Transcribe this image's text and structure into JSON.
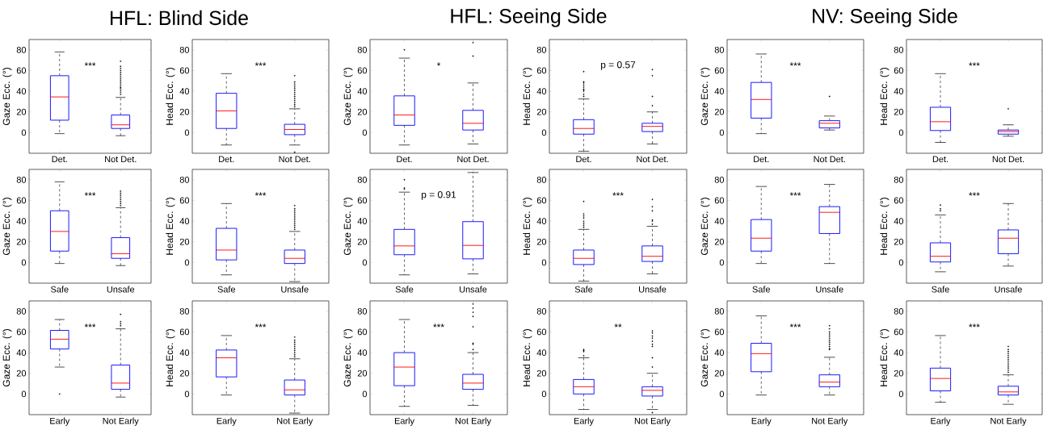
{
  "chart_data": [
    {
      "type": "box",
      "title": "HFL: Blind Side",
      "ylabel": "Gaze Ecc. (°)",
      "categories": [
        "Det.",
        "Not Det."
      ],
      "ylim": [
        -20,
        90
      ],
      "yticks": [
        0,
        20,
        40,
        60,
        80
      ],
      "annotations": [
        "***"
      ],
      "boxes": [
        {
          "low": -1,
          "q1": 12,
          "median": 34.5,
          "q3": 55,
          "high": 78
        },
        {
          "low": -3,
          "q1": 4,
          "median": 7.5,
          "q3": 17,
          "high": 34,
          "outliers": [
            37,
            39,
            41,
            43,
            44,
            46,
            48,
            50,
            52,
            54,
            56,
            58,
            60,
            62,
            64,
            69
          ]
        }
      ]
    },
    {
      "type": "box",
      "ylabel": "Head Ecc. (°)",
      "categories": [
        "Det.",
        "Not Det."
      ],
      "ylim": [
        -20,
        90
      ],
      "yticks": [
        0,
        20,
        40,
        60,
        80
      ],
      "annotations": [
        "***"
      ],
      "boxes": [
        {
          "low": -12,
          "q1": 4,
          "median": 21,
          "q3": 38,
          "high": 57
        },
        {
          "low": -12,
          "q1": -2,
          "median": 3,
          "q3": 8,
          "high": 23,
          "outliers": [
            -19,
            25,
            27,
            29,
            31,
            33,
            35,
            37,
            39,
            41,
            43,
            45,
            47,
            49,
            55
          ]
        }
      ]
    },
    {
      "type": "box",
      "title": "HFL: Seeing Side",
      "ylabel": "Gaze Ecc. (°)",
      "categories": [
        "Det.",
        "Not Det."
      ],
      "ylim": [
        -20,
        90
      ],
      "yticks": [
        0,
        20,
        40,
        60,
        80
      ],
      "annotations": [
        "*"
      ],
      "boxes": [
        {
          "low": -12,
          "q1": 7,
          "median": 17,
          "q3": 35.5,
          "high": 72,
          "outliers": [
            80
          ]
        },
        {
          "low": -11,
          "q1": 2.5,
          "median": 9,
          "q3": 21.5,
          "high": 48,
          "outliers": [
            74,
            87
          ]
        }
      ]
    },
    {
      "type": "box",
      "ylabel": "Head Ecc. (°)",
      "categories": [
        "Det.",
        "Not Det."
      ],
      "ylim": [
        -20,
        90
      ],
      "yticks": [
        0,
        20,
        40,
        60,
        80
      ],
      "annotations": [
        "p = 0.57"
      ],
      "boxes": [
        {
          "low": -18,
          "q1": -1.5,
          "median": 4,
          "q3": 12.5,
          "high": 32.5,
          "outliers": [
            35,
            37,
            40,
            41,
            42,
            44,
            46,
            48,
            49,
            59
          ]
        },
        {
          "low": -11,
          "q1": 1,
          "median": 6,
          "q3": 9,
          "high": 20,
          "outliers": [
            26,
            35,
            55,
            61
          ]
        }
      ]
    },
    {
      "type": "box",
      "title": "NV: Seeing Side",
      "ylabel": "Gaze Ecc. (°)",
      "categories": [
        "Det.",
        "Not Det."
      ],
      "ylim": [
        -20,
        90
      ],
      "yticks": [
        0,
        20,
        40,
        60,
        80
      ],
      "annotations": [
        "***"
      ],
      "boxes": [
        {
          "low": -1,
          "q1": 14,
          "median": 32,
          "q3": 48.5,
          "high": 76
        },
        {
          "low": 2.5,
          "q1": 4.5,
          "median": 9,
          "q3": 11.5,
          "high": 16,
          "outliers": [
            35
          ]
        }
      ]
    },
    {
      "type": "box",
      "ylabel": "Head Ecc. (°)",
      "categories": [
        "Det.",
        "Not Det."
      ],
      "ylim": [
        -20,
        90
      ],
      "yticks": [
        0,
        20,
        40,
        60,
        80
      ],
      "annotations": [
        "***"
      ],
      "boxes": [
        {
          "low": -9.5,
          "q1": 2,
          "median": 10.5,
          "q3": 24.5,
          "high": 57
        },
        {
          "low": -3.5,
          "q1": -1.5,
          "median": 1,
          "q3": 2.5,
          "high": 7.5,
          "outliers": [
            23
          ]
        }
      ]
    },
    {
      "type": "box",
      "ylabel": "Gaze Ecc. (°)",
      "categories": [
        "Safe",
        "Unsafe"
      ],
      "ylim": [
        -20,
        90
      ],
      "yticks": [
        0,
        20,
        40,
        60,
        80
      ],
      "annotations": [
        "***"
      ],
      "boxes": [
        {
          "low": -1,
          "q1": 11,
          "median": 30,
          "q3": 50,
          "high": 78
        },
        {
          "low": -3,
          "q1": 4,
          "median": 8.5,
          "q3": 24,
          "high": 53,
          "outliers": [
            55,
            57,
            59,
            61,
            63,
            65,
            67,
            69
          ]
        }
      ]
    },
    {
      "type": "box",
      "ylabel": "Head Ecc. (°)",
      "categories": [
        "Safe",
        "Unsafe"
      ],
      "ylim": [
        -20,
        90
      ],
      "yticks": [
        0,
        20,
        40,
        60,
        80
      ],
      "annotations": [
        "***"
      ],
      "boxes": [
        {
          "low": -12,
          "q1": 2.5,
          "median": 12,
          "q3": 33,
          "high": 57
        },
        {
          "low": -18.5,
          "q1": -1,
          "median": 4,
          "q3": 12,
          "high": 30,
          "outliers": [
            32,
            34,
            36,
            38,
            40,
            42,
            44,
            46,
            48,
            50,
            52,
            55
          ]
        }
      ]
    },
    {
      "type": "box",
      "ylabel": "Gaze Ecc. (°)",
      "categories": [
        "Safe",
        "Unsafe"
      ],
      "ylim": [
        -20,
        90
      ],
      "yticks": [
        0,
        20,
        40,
        60,
        80
      ],
      "annotations": [
        "p = 0.91"
      ],
      "boxes": [
        {
          "low": -12,
          "q1": 7.5,
          "median": 16,
          "q3": 32,
          "high": 68,
          "outliers": [
            71,
            72,
            80
          ]
        },
        {
          "low": -11,
          "q1": 3.5,
          "median": 16.5,
          "q3": 39.5,
          "high": 87
        }
      ]
    },
    {
      "type": "box",
      "ylabel": "Head Ecc. (°)",
      "categories": [
        "Safe",
        "Unsafe"
      ],
      "ylim": [
        -20,
        90
      ],
      "yticks": [
        0,
        20,
        40,
        60,
        80
      ],
      "annotations": [
        "***"
      ],
      "boxes": [
        {
          "low": -18,
          "q1": -2,
          "median": 4,
          "q3": 12,
          "high": 32,
          "outliers": [
            34,
            36,
            38,
            40,
            43,
            45,
            47,
            59
          ]
        },
        {
          "low": -11,
          "q1": 1,
          "median": 6,
          "q3": 16,
          "high": 35,
          "outliers": [
            37,
            40,
            41,
            50,
            54,
            61
          ]
        }
      ]
    },
    {
      "type": "box",
      "ylabel": "Gaze Ecc. (°)",
      "categories": [
        "Safe",
        "Unsafe"
      ],
      "ylim": [
        -20,
        90
      ],
      "yticks": [
        0,
        20,
        40,
        60,
        80
      ],
      "annotations": [
        "***"
      ],
      "boxes": [
        {
          "low": -1,
          "q1": 11,
          "median": 23.5,
          "q3": 41.5,
          "high": 73.5
        },
        {
          "low": -1,
          "q1": 28,
          "median": 48.5,
          "q3": 54,
          "high": 75.5
        }
      ]
    },
    {
      "type": "box",
      "ylabel": "Head Ecc. (°)",
      "categories": [
        "Safe",
        "Unsafe"
      ],
      "ylim": [
        -20,
        90
      ],
      "yticks": [
        0,
        20,
        40,
        60,
        80
      ],
      "annotations": [
        "***"
      ],
      "boxes": [
        {
          "low": -9,
          "q1": 0.5,
          "median": 6,
          "q3": 19,
          "high": 46,
          "outliers": [
            50,
            52,
            55.5
          ]
        },
        {
          "low": -3.5,
          "q1": 8.5,
          "median": 23.5,
          "q3": 31.5,
          "high": 57
        }
      ]
    },
    {
      "type": "box",
      "ylabel": "Gaze Ecc. (°)",
      "categories": [
        "Early",
        "Not Early"
      ],
      "ylim": [
        -20,
        90
      ],
      "yticks": [
        0,
        20,
        40,
        60,
        80
      ],
      "annotations": [
        "***"
      ],
      "boxes": [
        {
          "low": 26,
          "q1": 43.5,
          "median": 53,
          "q3": 61.5,
          "high": 72,
          "outliers": [
            0
          ]
        },
        {
          "low": -3,
          "q1": 4.5,
          "median": 10.5,
          "q3": 28,
          "high": 63,
          "outliers": [
            66,
            68,
            70,
            77
          ]
        }
      ]
    },
    {
      "type": "box",
      "ylabel": "Head Ecc. (°)",
      "categories": [
        "Early",
        "Not Early"
      ],
      "ylim": [
        -20,
        90
      ],
      "yticks": [
        0,
        20,
        40,
        60,
        80
      ],
      "annotations": [
        "***"
      ],
      "boxes": [
        {
          "low": -1,
          "q1": 16.5,
          "median": 35,
          "q3": 42.5,
          "high": 56.5
        },
        {
          "low": -18.5,
          "q1": -1,
          "median": 4,
          "q3": 13.5,
          "high": 34,
          "outliers": [
            36,
            38,
            40,
            42,
            44,
            46,
            48,
            50,
            52,
            55
          ]
        }
      ]
    },
    {
      "type": "box",
      "ylabel": "Gaze Ecc. (°)",
      "categories": [
        "Early",
        "Not Early"
      ],
      "ylim": [
        -20,
        90
      ],
      "yticks": [
        0,
        20,
        40,
        60,
        80
      ],
      "annotations": [
        "***"
      ],
      "boxes": [
        {
          "low": -12,
          "q1": 8,
          "median": 26,
          "q3": 40,
          "high": 72
        },
        {
          "low": -11,
          "q1": 4.5,
          "median": 10.5,
          "q3": 19,
          "high": 40,
          "outliers": [
            43,
            48,
            49,
            65,
            75,
            79,
            83,
            87
          ]
        }
      ]
    },
    {
      "type": "box",
      "ylabel": "Head Ecc. (°)",
      "categories": [
        "Early",
        "Not Early"
      ],
      "ylim": [
        -20,
        90
      ],
      "yticks": [
        0,
        20,
        40,
        60,
        80
      ],
      "annotations": [
        "**"
      ],
      "boxes": [
        {
          "low": -15,
          "q1": 0,
          "median": 7,
          "q3": 14,
          "high": 35,
          "outliers": [
            37,
            41,
            42,
            43
          ]
        },
        {
          "low": -15,
          "q1": -2,
          "median": 3.5,
          "q3": 7,
          "high": 20,
          "outliers": [
            -18,
            26,
            35,
            46,
            48,
            51,
            54,
            56,
            59,
            61
          ]
        }
      ]
    },
    {
      "type": "box",
      "ylabel": "Gaze Ecc. (°)",
      "categories": [
        "Early",
        "Not Early"
      ],
      "ylim": [
        -20,
        90
      ],
      "yticks": [
        0,
        20,
        40,
        60,
        80
      ],
      "annotations": [
        "***"
      ],
      "boxes": [
        {
          "low": -1,
          "q1": 21.5,
          "median": 39,
          "q3": 49,
          "high": 75.5
        },
        {
          "low": -1,
          "q1": 7,
          "median": 11.5,
          "q3": 18.5,
          "high": 35.5,
          "outliers": [
            43,
            44,
            46,
            48,
            50,
            52,
            54,
            56,
            58,
            60,
            63,
            66
          ]
        }
      ]
    },
    {
      "type": "box",
      "ylabel": "Head Ecc. (°)",
      "categories": [
        "Early",
        "Not Early"
      ],
      "ylim": [
        -20,
        90
      ],
      "yticks": [
        0,
        20,
        40,
        60,
        80
      ],
      "annotations": [
        "***"
      ],
      "boxes": [
        {
          "low": -8,
          "q1": 3,
          "median": 15,
          "q3": 25,
          "high": 56.5
        },
        {
          "low": -10,
          "q1": -1,
          "median": 2,
          "q3": 7.5,
          "high": 18.5,
          "outliers": [
            21,
            23,
            25,
            27,
            29,
            31,
            33,
            35,
            37,
            39,
            41,
            43,
            46
          ]
        }
      ]
    }
  ]
}
